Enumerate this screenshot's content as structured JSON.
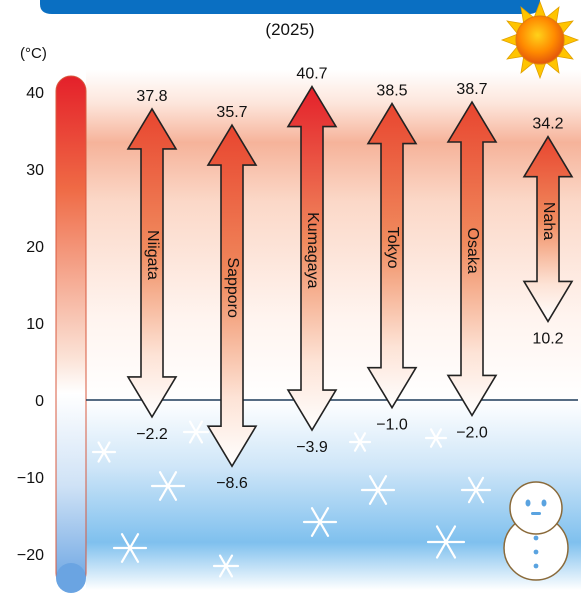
{
  "banner": {
    "color": "#0a6fc2"
  },
  "subtitle": "(2025)",
  "unit_label": "(°C)",
  "icons": {
    "sun": "sun-icon",
    "snowman": "snowman-icon",
    "snowflake": "snowflake-icon"
  },
  "colors": {
    "warm_top": "#e4202a",
    "warm_mid": "#f08a5d",
    "cold": "#5aa9e6",
    "zero_line": "#1f3c5a"
  },
  "chart_data": {
    "type": "range-bar",
    "ylim": [
      -20,
      40
    ],
    "y_ticks": [
      40,
      30,
      20,
      10,
      0,
      -10,
      -20
    ],
    "grid": false,
    "series": [
      {
        "city": "Niigata",
        "max": 37.8,
        "min": -2.2,
        "max_label": "37.8",
        "min_label": "−2.2"
      },
      {
        "city": "Sapporo",
        "max": 35.7,
        "min": -8.6,
        "max_label": "35.7",
        "min_label": "−8.6"
      },
      {
        "city": "Kumagaya",
        "max": 40.7,
        "min": -3.9,
        "max_label": "40.7",
        "min_label": "−3.9"
      },
      {
        "city": "Tokyo",
        "max": 38.5,
        "min": -1.0,
        "max_label": "38.5",
        "min_label": "−1.0"
      },
      {
        "city": "Osaka",
        "max": 38.7,
        "min": -2.0,
        "max_label": "38.7",
        "min_label": "−2.0"
      },
      {
        "city": "Naha",
        "max": 34.2,
        "min": 10.2,
        "max_label": "34.2",
        "min_label": "10.2"
      }
    ]
  }
}
